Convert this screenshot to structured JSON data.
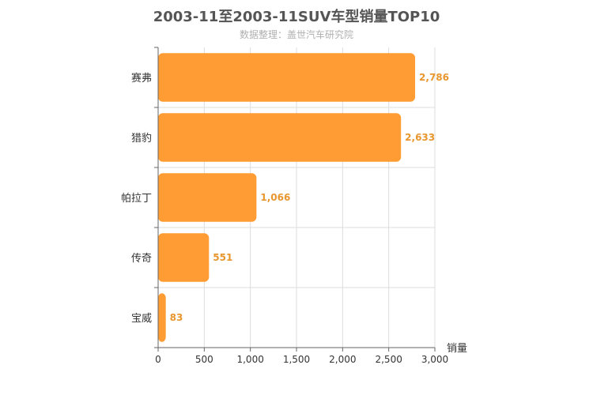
{
  "title": "2003-11至2003-11SUV车型销量TOP10",
  "subtitle": "数据整理：盖世汽车研究院",
  "colors": {
    "bar": "#ff9c33",
    "label": "#e8962e",
    "grid": "#dddddd",
    "axis": "#666666"
  },
  "chart_data": {
    "type": "bar",
    "orientation": "horizontal",
    "categories": [
      "赛弗",
      "猎豹",
      "帕拉丁",
      "传奇",
      "宝威"
    ],
    "values": [
      2786,
      2633,
      1066,
      551,
      83
    ],
    "value_labels": [
      "2,786",
      "2,633",
      "1,066",
      "551",
      "83"
    ],
    "xlabel": "销量",
    "ylabel": "",
    "xlim": [
      0,
      3000
    ],
    "x_ticks": [
      0,
      500,
      1000,
      1500,
      2000,
      2500,
      3000
    ],
    "x_tick_labels": [
      "0",
      "500",
      "1,000",
      "1,500",
      "2,000",
      "2,500",
      "3,000"
    ],
    "grid": true,
    "legend": "none"
  }
}
